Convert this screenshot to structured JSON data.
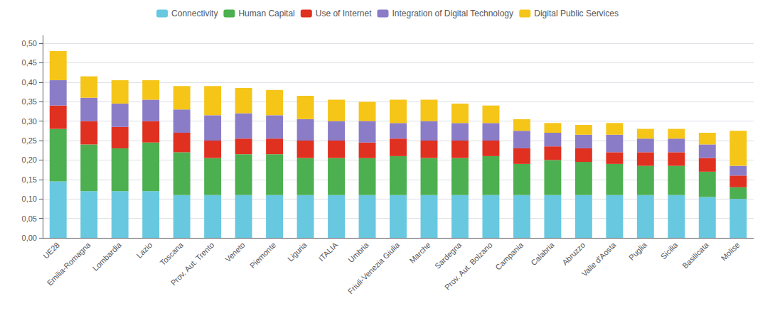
{
  "chart_data": {
    "type": "bar",
    "stacked": true,
    "categories": [
      "UE28",
      "Emilia-Romagna",
      "Lombardia",
      "Lazio",
      "Toscana",
      "Prov. Aut. Trento",
      "Veneto",
      "Piemonte",
      "Liguria",
      "ITALIA",
      "Umbria",
      "Friuli-Venezia Giulia",
      "Marche",
      "Sardegna",
      "Prov. Aut. Bolzano",
      "Campania",
      "Calabria",
      "Abruzzo",
      "Valle d'Aosta",
      "Puglia",
      "Sicilia",
      "Basilicata",
      "Molise"
    ],
    "series": [
      {
        "name": "Connectivity",
        "color": "#67C8E0",
        "values": [
          0.145,
          0.12,
          0.12,
          0.12,
          0.11,
          0.11,
          0.11,
          0.11,
          0.11,
          0.11,
          0.11,
          0.11,
          0.11,
          0.11,
          0.11,
          0.11,
          0.11,
          0.11,
          0.11,
          0.11,
          0.11,
          0.105,
          0.1
        ]
      },
      {
        "name": "Human Capital",
        "color": "#4CAF50",
        "values": [
          0.135,
          0.12,
          0.11,
          0.125,
          0.11,
          0.095,
          0.105,
          0.105,
          0.095,
          0.095,
          0.095,
          0.1,
          0.095,
          0.095,
          0.1,
          0.08,
          0.09,
          0.085,
          0.08,
          0.075,
          0.075,
          0.065,
          0.03
        ]
      },
      {
        "name": "Use of Internet",
        "color": "#E03020",
        "values": [
          0.06,
          0.06,
          0.055,
          0.055,
          0.05,
          0.045,
          0.04,
          0.04,
          0.045,
          0.045,
          0.04,
          0.045,
          0.045,
          0.045,
          0.04,
          0.04,
          0.035,
          0.035,
          0.03,
          0.035,
          0.035,
          0.035,
          0.03
        ]
      },
      {
        "name": "Integration of Digital Technology",
        "color": "#8B7CC8",
        "values": [
          0.065,
          0.06,
          0.06,
          0.055,
          0.06,
          0.065,
          0.065,
          0.06,
          0.055,
          0.05,
          0.055,
          0.04,
          0.05,
          0.045,
          0.045,
          0.045,
          0.035,
          0.035,
          0.045,
          0.035,
          0.035,
          0.035,
          0.025
        ]
      },
      {
        "name": "Digital Public Services",
        "color": "#F5C518",
        "values": [
          0.075,
          0.055,
          0.06,
          0.05,
          0.06,
          0.075,
          0.065,
          0.065,
          0.06,
          0.055,
          0.05,
          0.06,
          0.055,
          0.05,
          0.045,
          0.03,
          0.025,
          0.025,
          0.03,
          0.025,
          0.025,
          0.03,
          0.09
        ]
      }
    ],
    "ylim": [
      0.0,
      0.52
    ],
    "yticks": [
      {
        "value": 0.0,
        "label": "0,00"
      },
      {
        "value": 0.05,
        "label": "0,05"
      },
      {
        "value": 0.1,
        "label": "0,10"
      },
      {
        "value": 0.15,
        "label": "0,15"
      },
      {
        "value": 0.2,
        "label": "0,20"
      },
      {
        "value": 0.25,
        "label": "0,25"
      },
      {
        "value": 0.3,
        "label": "0,30"
      },
      {
        "value": 0.35,
        "label": "0,35"
      },
      {
        "value": 0.4,
        "label": "0,40"
      },
      {
        "value": 0.45,
        "label": "0,45"
      },
      {
        "value": 0.5,
        "label": "0,50"
      }
    ],
    "grid": true,
    "legend": "top"
  }
}
